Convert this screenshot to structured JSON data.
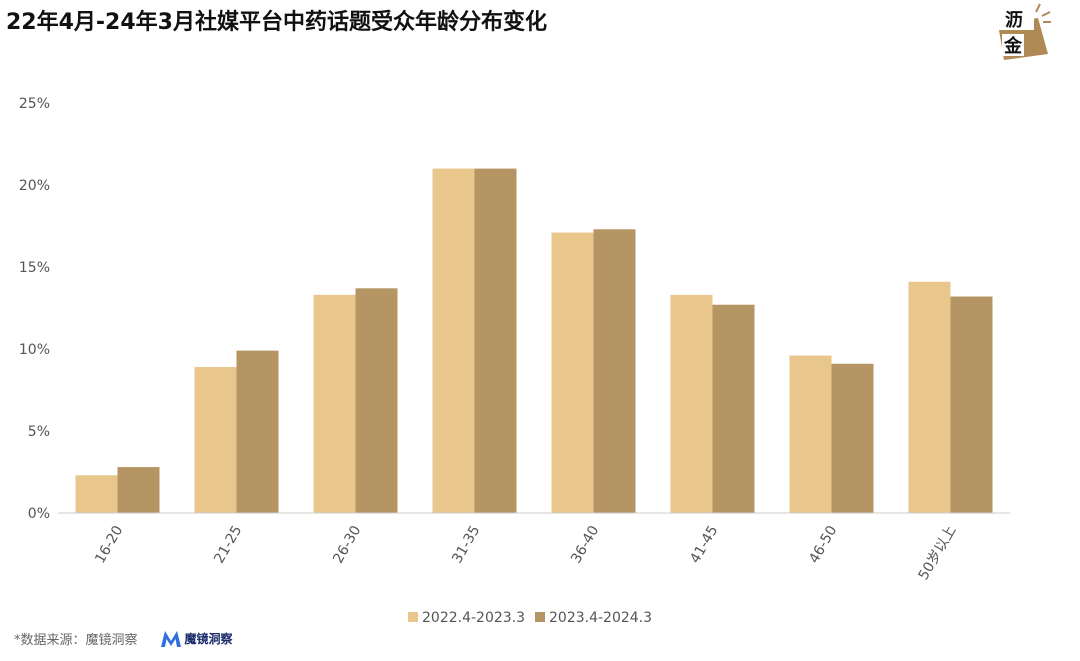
{
  "title": "22年4月-24年3月社媒平台中药话题受众年龄分布变化",
  "logo": {
    "line1": "沥",
    "line2": "金",
    "icon": "lijin-logo-icon"
  },
  "source": {
    "label": "*数据来源：魔镜洞察",
    "brand_name": "魔镜洞察",
    "brand_icon": "mojing-m-icon"
  },
  "colors": {
    "series1": "#E8C68C",
    "series2": "#B59563",
    "axis": "#cccccc",
    "text": "#555555"
  },
  "chart_data": {
    "type": "bar",
    "title": "22年4月-24年3月社媒平台中药话题受众年龄分布变化",
    "xlabel": "",
    "ylabel": "",
    "categories": [
      "16-20",
      "21-25",
      "26-30",
      "31-35",
      "36-40",
      "41-45",
      "46-50",
      "50岁以上"
    ],
    "series": [
      {
        "name": "2022.4-2023.3",
        "values": [
          2.3,
          8.9,
          13.3,
          21.0,
          17.1,
          13.3,
          9.6,
          14.1
        ]
      },
      {
        "name": "2023.4-2024.3",
        "values": [
          2.8,
          9.9,
          13.7,
          21.0,
          17.3,
          12.7,
          9.1,
          13.2
        ]
      }
    ],
    "ylim": [
      0,
      25
    ],
    "yticks": [
      "0%",
      "5%",
      "10%",
      "15%",
      "20%",
      "25%"
    ],
    "ytick_values": [
      0,
      5,
      10,
      15,
      20,
      25
    ],
    "grid": false,
    "legend_position": "bottom-center"
  }
}
